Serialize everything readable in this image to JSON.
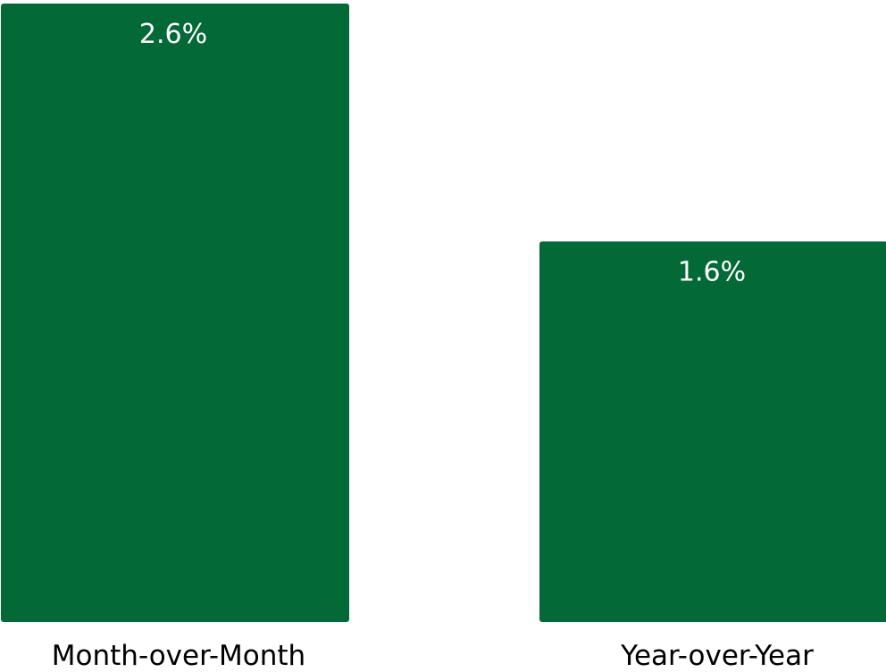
{
  "chart_data": {
    "type": "bar",
    "categories": [
      "Month-over-Month",
      "Year-over-Year"
    ],
    "values": [
      2.6,
      1.6
    ],
    "value_labels": [
      "2.6%",
      "1.6%"
    ],
    "title": "",
    "xlabel": "",
    "ylabel": "",
    "ylim": [
      0,
      2.6
    ],
    "grid": false,
    "legend": "none",
    "colors": {
      "bar": "#036937",
      "value_label": "#ffffff",
      "category_label": "#000000"
    }
  }
}
